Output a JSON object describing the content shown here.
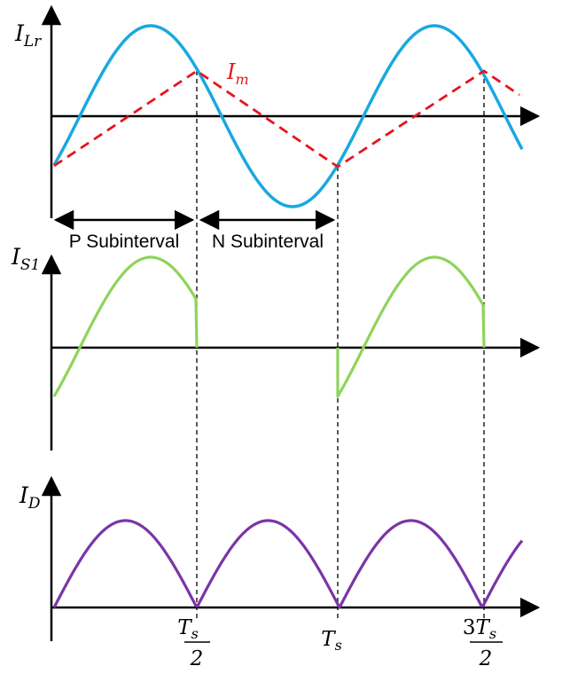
{
  "colors": {
    "axis": "#000000",
    "lr_current": "#1aa8e0",
    "magnetizing_current": "#e8141c",
    "switch_current": "#8ed45a",
    "diode_current": "#7a35a8",
    "marker": "#000000"
  },
  "panels": [
    {
      "id": "ilr",
      "label": {
        "main": "I",
        "sub": "Lr"
      },
      "traces": [
        {
          "id": "ilr-wave",
          "label": {
            "main": "",
            "sub": ""
          }
        },
        {
          "id": "im-wave",
          "label": {
            "main": "I",
            "sub": "m"
          }
        }
      ]
    },
    {
      "id": "is1",
      "label": {
        "main": "I",
        "sub": "S1"
      },
      "traces": [
        {
          "id": "is1-wave",
          "label": {
            "main": "",
            "sub": ""
          }
        }
      ]
    },
    {
      "id": "id",
      "label": {
        "main": "I",
        "sub": "D"
      },
      "traces": [
        {
          "id": "id-wave",
          "label": {
            "main": "",
            "sub": ""
          }
        }
      ]
    }
  ],
  "intervals": [
    {
      "label": "P Subinterval"
    },
    {
      "label": "N Subinterval"
    }
  ],
  "time_marks": [
    {
      "id": "half-ts",
      "numerator": {
        "main": "T",
        "sub": "s"
      },
      "denominator": "2"
    },
    {
      "id": "ts",
      "main": "T",
      "sub": "s"
    },
    {
      "id": "three-half-ts",
      "numerator": {
        "pre": "3",
        "main": "T",
        "sub": "s"
      },
      "denominator": "2"
    }
  ]
}
